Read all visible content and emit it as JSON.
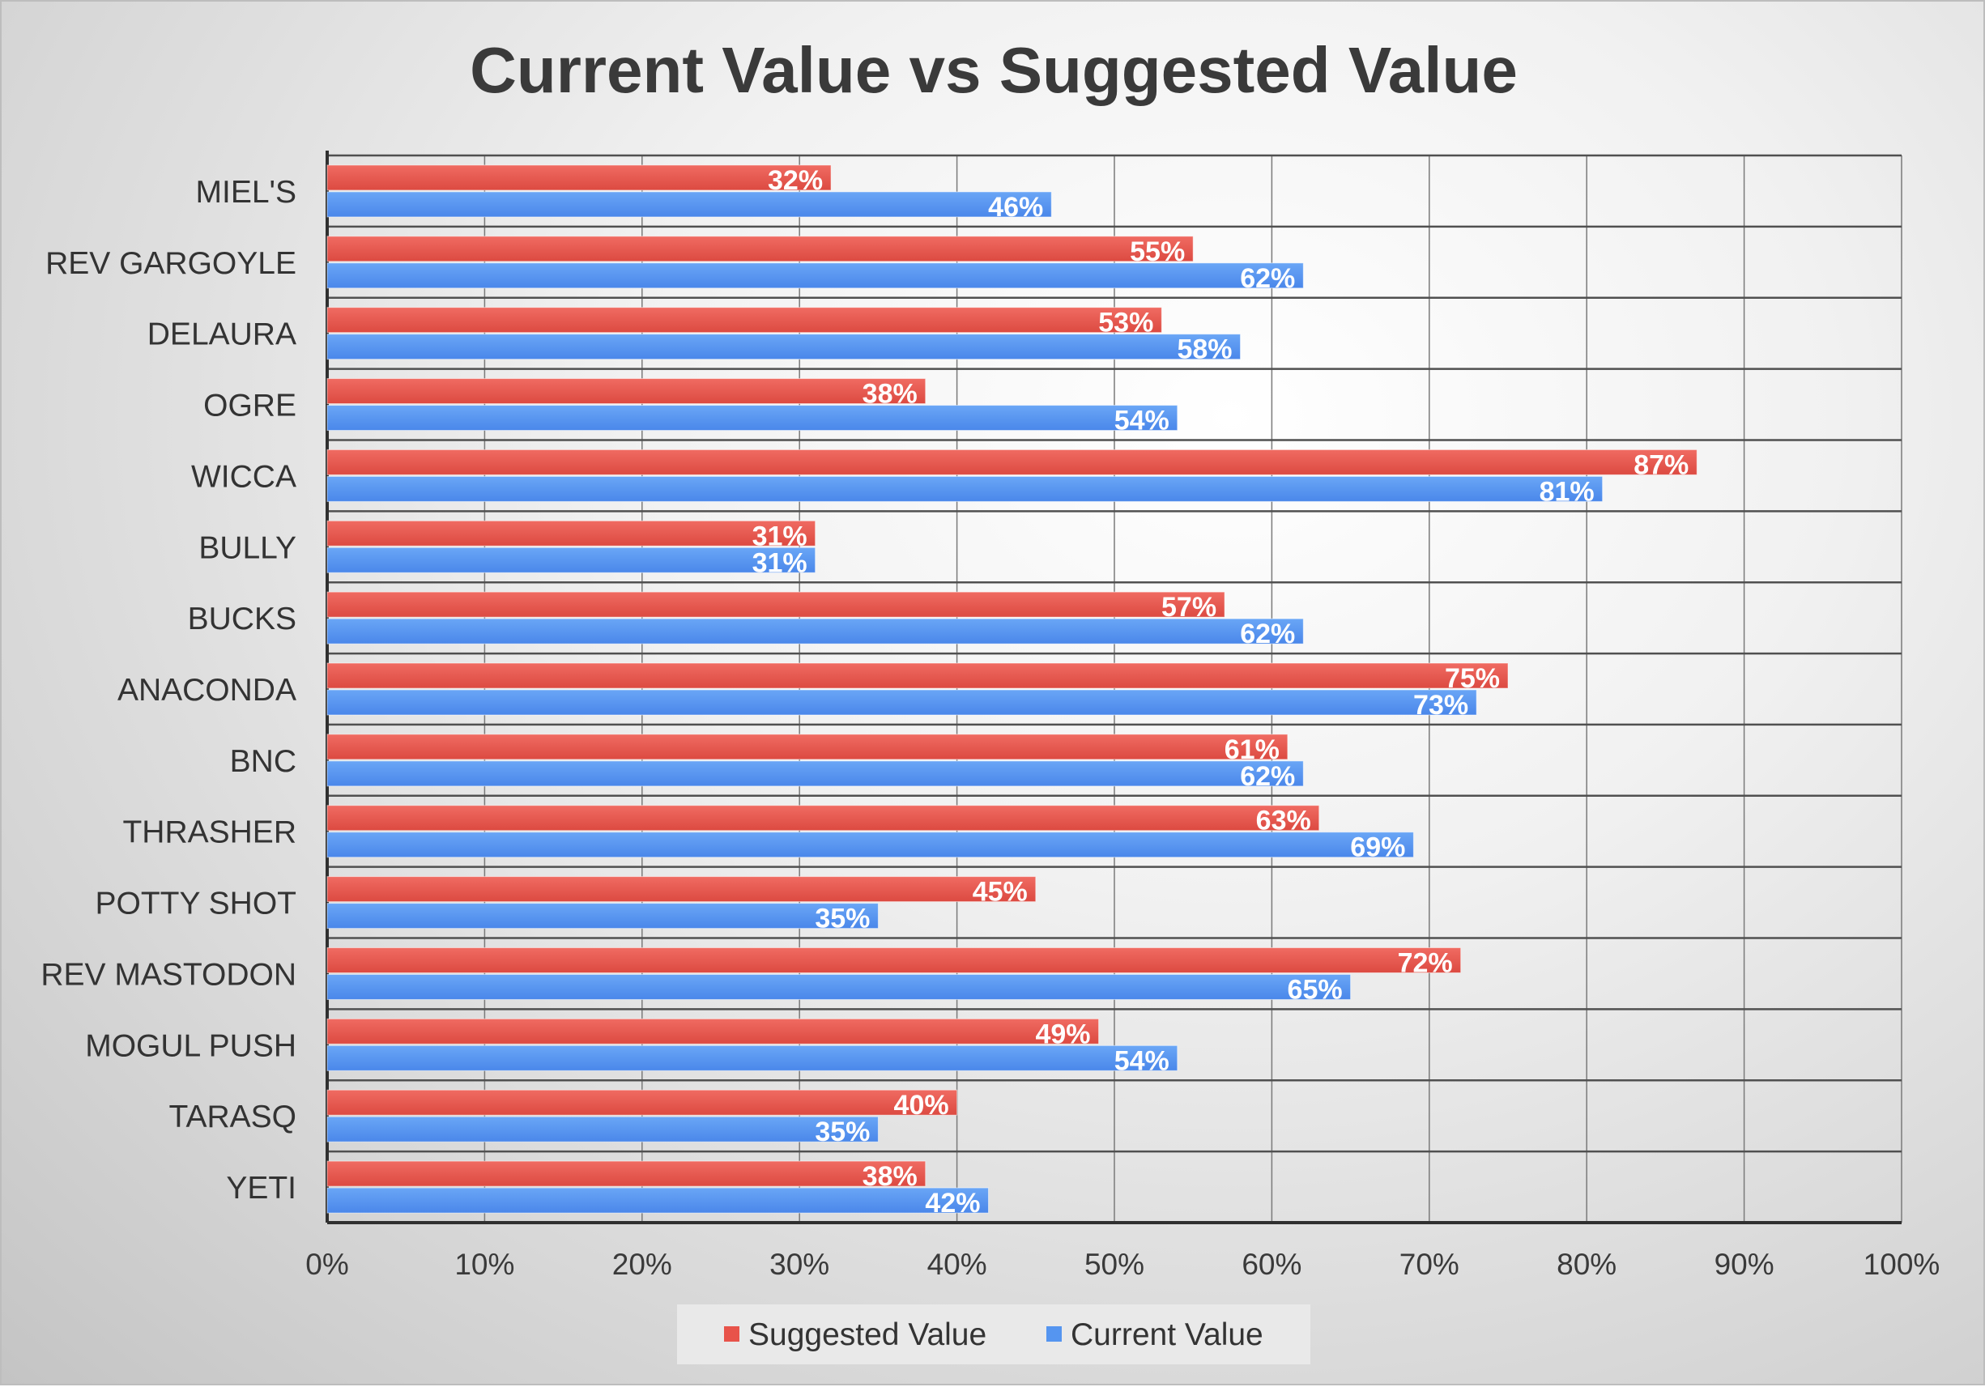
{
  "chart_data": {
    "type": "bar",
    "orientation": "horizontal",
    "title": "Current Value vs Suggested Value",
    "xlabel": "",
    "ylabel": "",
    "xlim": [
      0,
      100
    ],
    "x_ticks": [
      "0%",
      "10%",
      "20%",
      "30%",
      "40%",
      "50%",
      "60%",
      "70%",
      "80%",
      "90%",
      "100%"
    ],
    "grid": true,
    "legend_position": "bottom",
    "categories": [
      "MIEL'S",
      "REV GARGOYLE",
      "DELAURA",
      "OGRE",
      "WICCA",
      "BULLY",
      "BUCKS",
      "ANACONDA",
      "BNC",
      "THRASHER",
      "POTTY SHOT",
      "REV MASTODON",
      "MOGUL PUSH",
      "TARASQ",
      "YETI"
    ],
    "series": [
      {
        "name": "Suggested Value",
        "color": "#e8534a",
        "values": [
          32,
          55,
          53,
          38,
          87,
          31,
          57,
          75,
          61,
          63,
          45,
          72,
          49,
          40,
          38
        ],
        "labels": [
          "32%",
          "55%",
          "53%",
          "38%",
          "87%",
          "31%",
          "57%",
          "75%",
          "61%",
          "63%",
          "45%",
          "72%",
          "49%",
          "40%",
          "38%"
        ]
      },
      {
        "name": "Current Value",
        "color": "#5595f0",
        "values": [
          46,
          62,
          58,
          54,
          81,
          31,
          62,
          73,
          62,
          69,
          35,
          65,
          54,
          35,
          42
        ],
        "labels": [
          "46%",
          "62%",
          "58%",
          "54%",
          "81%",
          "31%",
          "62%",
          "73%",
          "62%",
          "69%",
          "35%",
          "65%",
          "54%",
          "35%",
          "42%"
        ]
      }
    ]
  }
}
